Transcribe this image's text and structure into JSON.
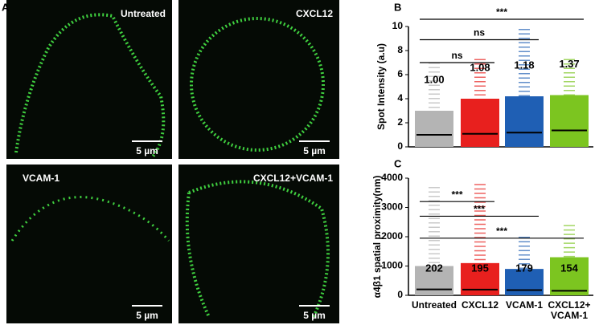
{
  "panel_labels": [
    "A",
    "B",
    "C"
  ],
  "images": [
    {
      "label": "Untreated",
      "scale": "5 µm"
    },
    {
      "label": "CXCL12",
      "scale": "5 µm"
    },
    {
      "label": "VCAM-1",
      "scale": "5 µm"
    },
    {
      "label": "CXCL12+VCAM-1",
      "scale": "5 µm"
    }
  ],
  "chart_data": [
    {
      "type": "dotplot",
      "ylabel": "Spot Intensity (a.u)",
      "values": [
        1.0,
        1.08,
        1.18,
        1.37
      ],
      "value_labels": [
        "1.00",
        "1.08",
        "1.18",
        "1.37"
      ],
      "bulk": [
        3,
        4,
        4.2,
        4.3
      ],
      "max": [
        7,
        7.3,
        9.8,
        7.3
      ],
      "colors": [
        "#b4b4b4",
        "#e8201e",
        "#1f5fb4",
        "#7cc520"
      ],
      "ylim": [
        0,
        10
      ],
      "yticks": [
        0,
        2,
        4,
        6,
        8,
        10
      ],
      "significance": [
        {
          "label": "***",
          "from": 0,
          "to": 3,
          "level": 10.6
        },
        {
          "label": "ns",
          "from": 0,
          "to": 2,
          "level": 8.9
        },
        {
          "label": "ns",
          "from": 0,
          "to": 1,
          "level": 7
        }
      ]
    },
    {
      "type": "dotplot",
      "ylabel": "α4β1 spatial proximity(nm)",
      "categories": [
        "Untreated",
        "CXCL12",
        "VCAM-1",
        "CXCL12+\nVCAM-1"
      ],
      "values": [
        202,
        195,
        179,
        154
      ],
      "bulk": [
        1000,
        1100,
        900,
        1300
      ],
      "max": [
        3700,
        3800,
        2000,
        2400
      ],
      "colors": [
        "#b4b4b4",
        "#e8201e",
        "#1f5fb4",
        "#7cc520"
      ],
      "ylim": [
        0,
        4000
      ],
      "yticks": [
        0,
        1000,
        2000,
        3000,
        4000
      ],
      "significance": [
        {
          "label": "***",
          "from": 0,
          "to": 1,
          "level": 3200
        },
        {
          "label": "***",
          "from": 0,
          "to": 2,
          "level": 2700
        },
        {
          "label": "***",
          "from": 0,
          "to": 3,
          "level": 1950
        }
      ]
    }
  ]
}
